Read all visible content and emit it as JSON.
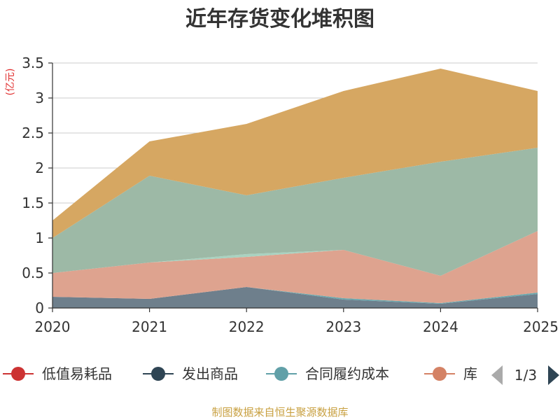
{
  "chart_data": {
    "type": "area",
    "stacked": true,
    "title": "近年存货变化堆积图",
    "unit": "(亿元)",
    "x": [
      "2020",
      "2021",
      "2022",
      "2023",
      "2024",
      "2025"
    ],
    "ylim": [
      0,
      3.5
    ],
    "yticks": [
      0,
      0.5,
      1,
      1.5,
      2,
      2.5,
      3,
      3.5
    ],
    "ytick_labels": [
      "0",
      "0.5",
      "1",
      "1.5",
      "2",
      "2.5",
      "3",
      "3.5"
    ],
    "grid": true,
    "layers": [
      {
        "color": "#6e7f8c",
        "top": [
          0.16,
          0.13,
          0.3,
          0.12,
          0.06,
          0.2
        ]
      },
      {
        "color": "#6aa7ad",
        "top": [
          0.16,
          0.13,
          0.3,
          0.14,
          0.07,
          0.22
        ]
      },
      {
        "color": "#dea38f",
        "top": [
          0.5,
          0.65,
          0.73,
          0.83,
          0.46,
          1.1
        ]
      },
      {
        "color": "#a9d2c0",
        "top": [
          0.5,
          0.65,
          0.77,
          0.83,
          0.46,
          1.1
        ]
      },
      {
        "color": "#9db9a6",
        "top": [
          1.0,
          1.89,
          1.61,
          1.86,
          2.09,
          2.29
        ]
      },
      {
        "color": "#d6a762",
        "top": [
          1.25,
          2.38,
          2.63,
          3.1,
          3.42,
          3.1
        ]
      }
    ],
    "legend_position": "bottom"
  },
  "legend": {
    "items": [
      {
        "label": "低值易耗品",
        "color": "#cc3333"
      },
      {
        "label": "发出商品",
        "color": "#2f4554"
      },
      {
        "label": "合同履约成本",
        "color": "#61a0a8"
      },
      {
        "label": "库",
        "color": "#d48265"
      }
    ],
    "page": "1/3",
    "prev_color": "#aaaaaa",
    "next_color": "#2f4554"
  },
  "footer": {
    "source": "制图数据来自恒生聚源数据库"
  }
}
